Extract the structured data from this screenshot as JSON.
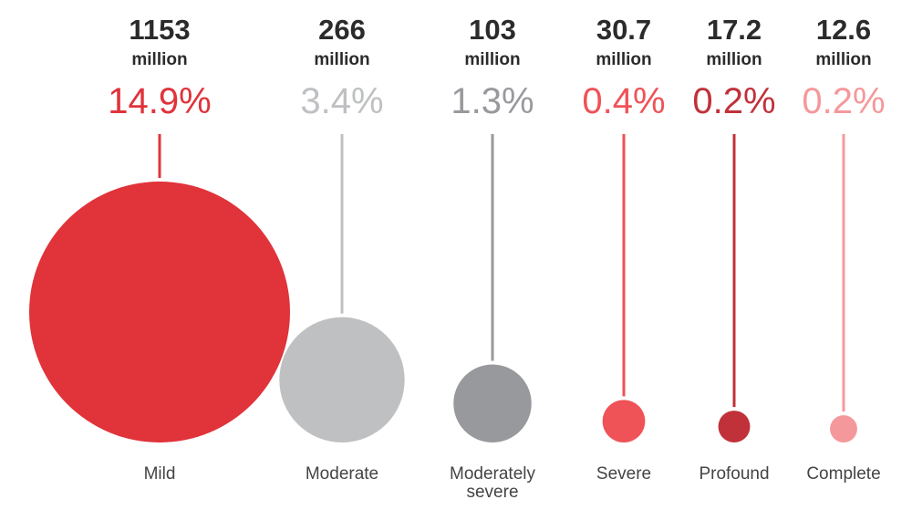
{
  "chart_data": {
    "type": "bubble",
    "categories": [
      "Mild",
      "Moderate",
      "Moderately severe",
      "Severe",
      "Profound",
      "Complete"
    ],
    "category_lines": [
      [
        "Mild"
      ],
      [
        "Moderate"
      ],
      [
        "Moderately",
        "severe"
      ],
      [
        "Severe"
      ],
      [
        "Profound"
      ],
      [
        "Complete"
      ]
    ],
    "values": [
      1153,
      266,
      103,
      30.7,
      17.2,
      12.6
    ],
    "value_labels": [
      "1153",
      "266",
      "103",
      "30.7",
      "17.2",
      "12.6"
    ],
    "unit": "million",
    "percentages": [
      "14.9%",
      "3.4%",
      "1.3%",
      "0.4%",
      "0.2%",
      "0.2%"
    ],
    "colors": [
      "#e0333a",
      "#bfc0c2",
      "#98999c",
      "#ef5257",
      "#c0313a",
      "#f5989b"
    ]
  }
}
